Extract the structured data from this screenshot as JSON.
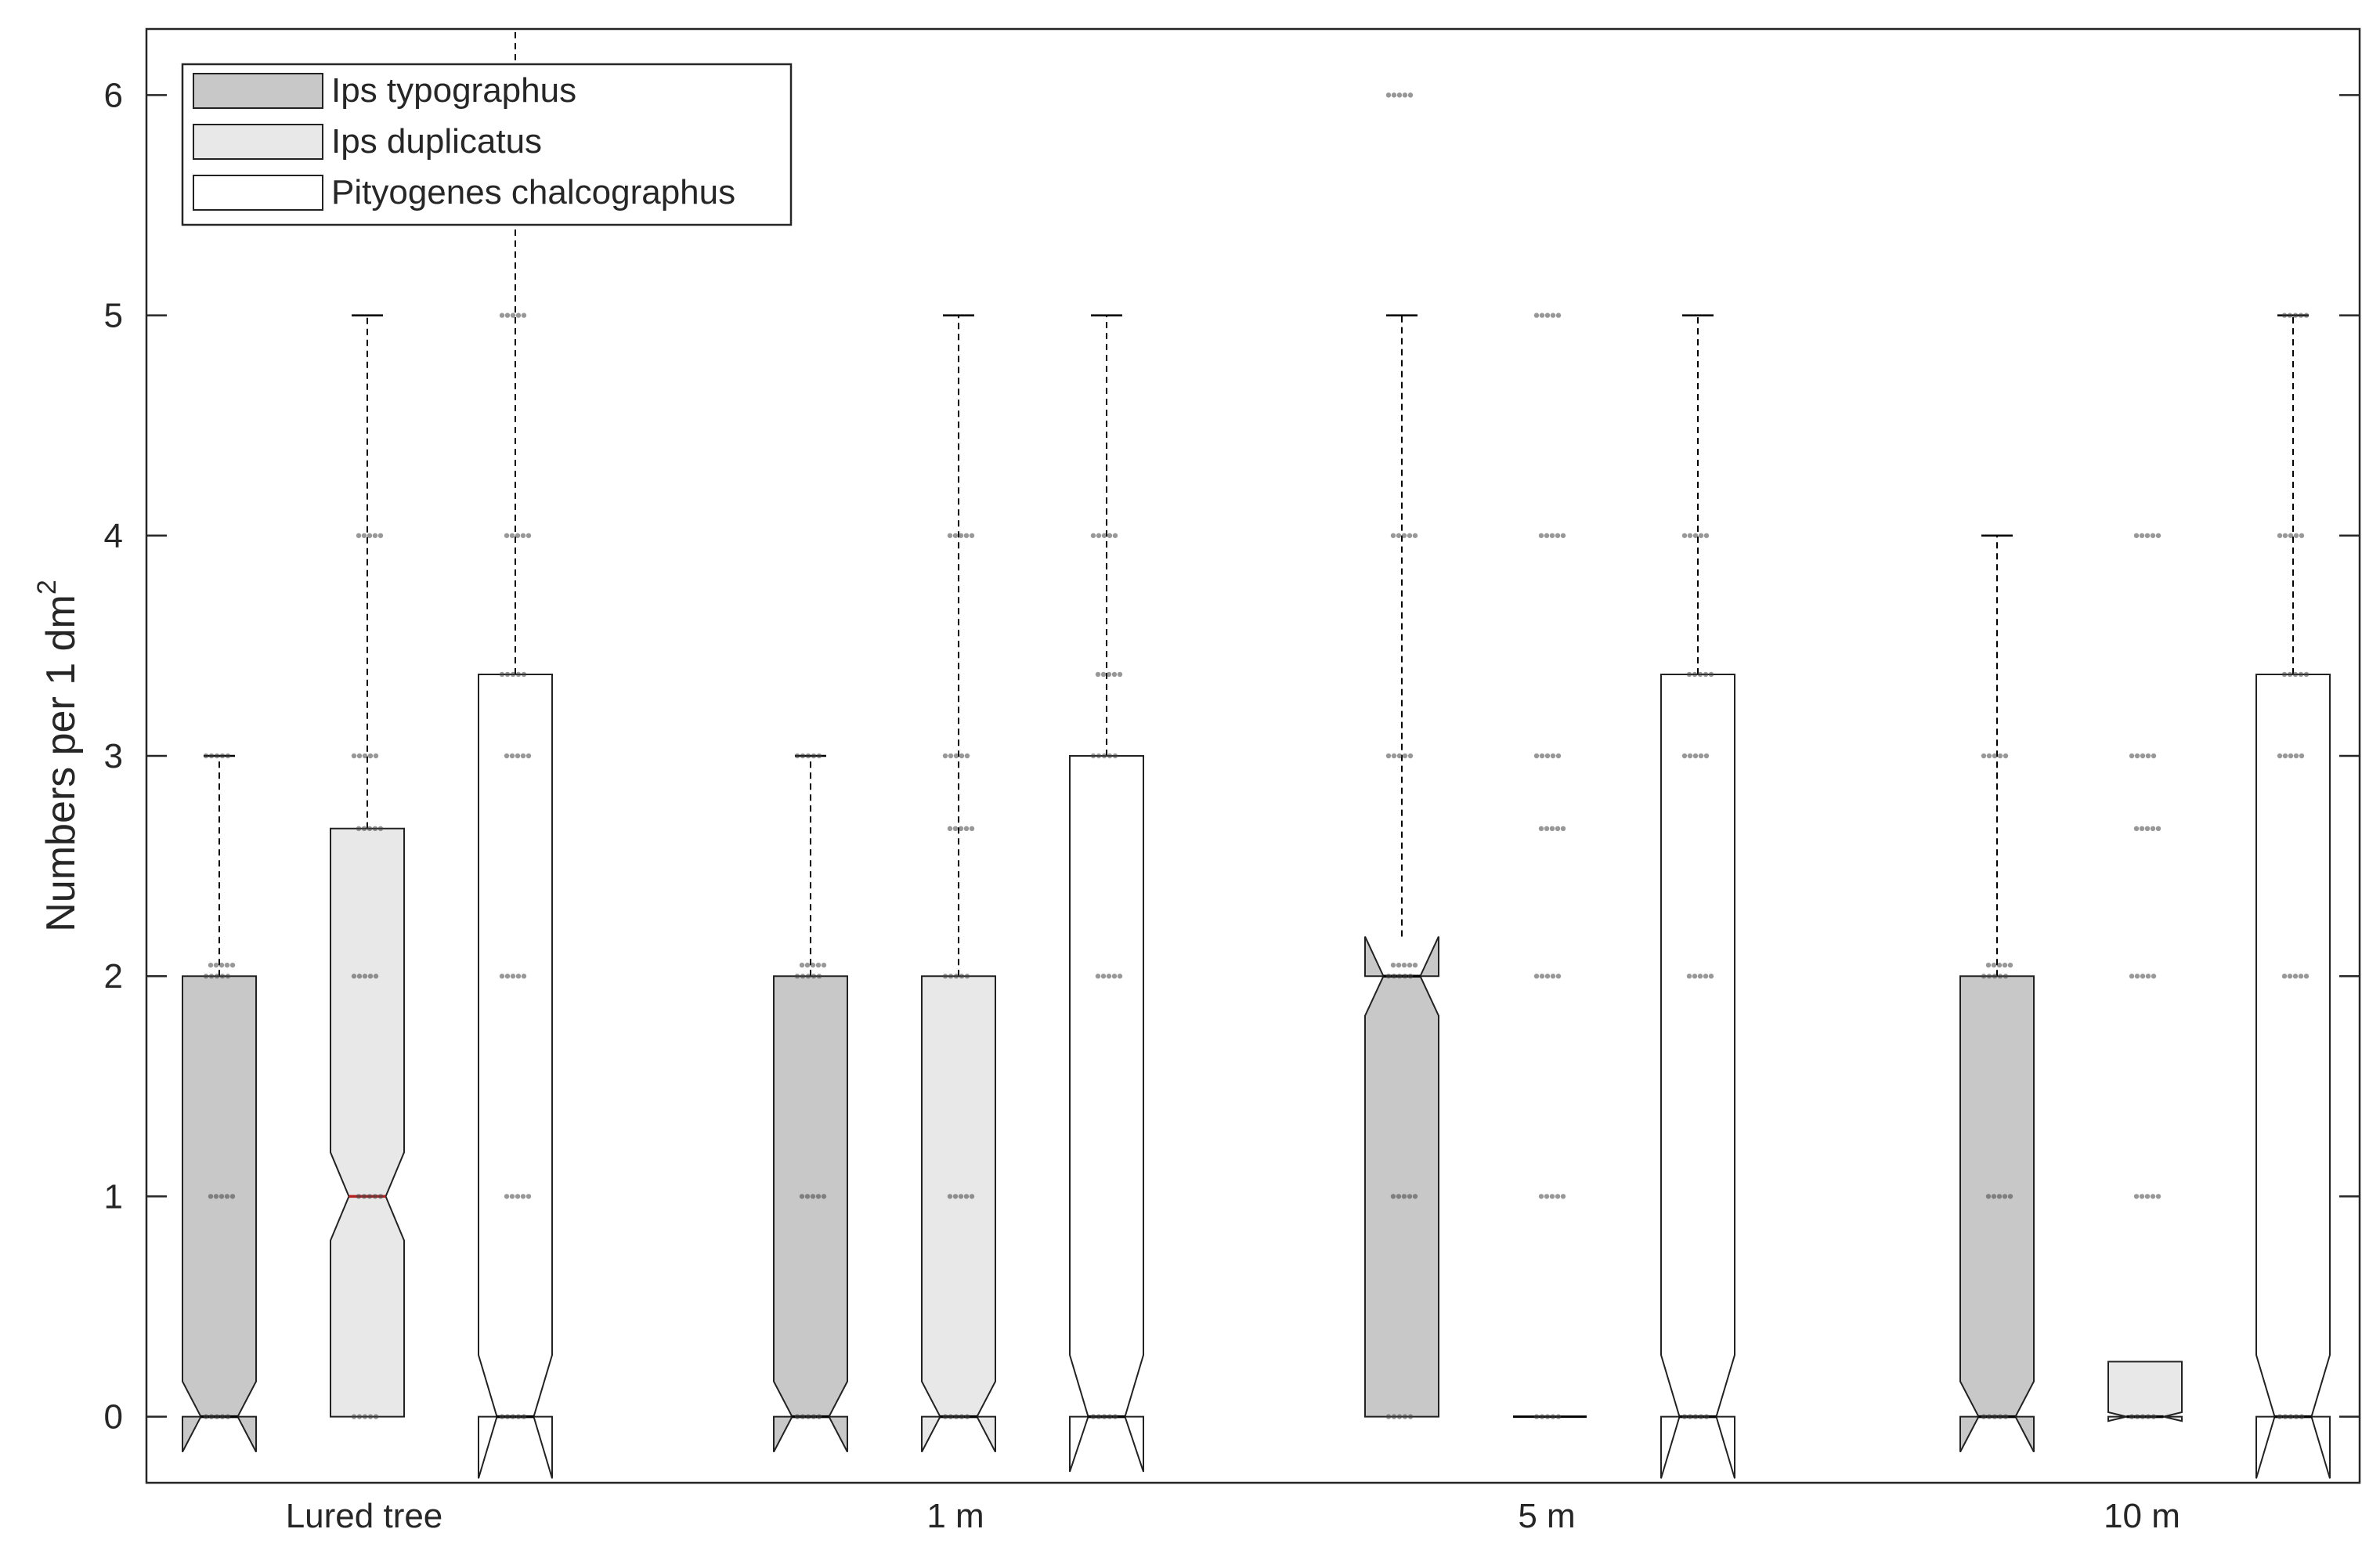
{
  "chart_data": {
    "type": "box",
    "ylabel": "Numbers per 1 dm",
    "ylabel_superscript": "2",
    "ylim": [
      -0.3,
      6.3
    ],
    "yticks": [
      0,
      1,
      2,
      3,
      4,
      5,
      6
    ],
    "groups": [
      "Lured tree",
      "1 m",
      "5 m",
      "10 m"
    ],
    "legend_position": "top-left",
    "series": [
      {
        "name": "Ips typographus",
        "color": "#c8c8c8"
      },
      {
        "name": "Ips duplicatus",
        "color": "#e8e8e8"
      },
      {
        "name": "Pityogenes chalcographus",
        "color": "#ffffff"
      }
    ],
    "boxes": [
      {
        "group": "Lured tree",
        "series": "Ips typographus",
        "q1": 0,
        "median": 0,
        "q3": 2,
        "whisker_low": 0,
        "whisker_high": 3,
        "notch_low": -0.16,
        "notch_high": 0.16,
        "points": [
          0,
          1,
          2,
          2.05,
          3
        ]
      },
      {
        "group": "Lured tree",
        "series": "Ips duplicatus",
        "q1": 0,
        "median": 1,
        "q3": 2.67,
        "whisker_low": 0,
        "whisker_high": 5,
        "notch_low": 0.8,
        "notch_high": 1.2,
        "points": [
          0,
          1,
          2,
          2.67,
          3,
          4
        ]
      },
      {
        "group": "Lured tree",
        "series": "Pityogenes chalcographus",
        "q1": 0,
        "median": 0,
        "q3": 3.37,
        "whisker_low": 0,
        "whisker_high": 6.3,
        "notch_low": -0.28,
        "notch_high": 0.28,
        "points": [
          0,
          1,
          2,
          3,
          3.37,
          4,
          5
        ]
      },
      {
        "group": "1 m",
        "series": "Ips typographus",
        "q1": 0,
        "median": 0,
        "q3": 2,
        "whisker_low": 0,
        "whisker_high": 3,
        "notch_low": -0.16,
        "notch_high": 0.16,
        "points": [
          0,
          1,
          2,
          2.05,
          3
        ]
      },
      {
        "group": "1 m",
        "series": "Ips duplicatus",
        "q1": 0,
        "median": 0,
        "q3": 2,
        "whisker_low": 0,
        "whisker_high": 5,
        "notch_low": -0.16,
        "notch_high": 0.16,
        "points": [
          0,
          1,
          2,
          2.67,
          3,
          4
        ]
      },
      {
        "group": "1 m",
        "series": "Pityogenes chalcographus",
        "q1": 0,
        "median": 0,
        "q3": 3,
        "whisker_low": 0,
        "whisker_high": 5,
        "notch_low": -0.25,
        "notch_high": 0.28,
        "points": [
          0,
          2,
          3,
          3.37,
          4
        ]
      },
      {
        "group": "5 m",
        "series": "Ips typographus",
        "q1": 0,
        "median": 2,
        "q3": 2,
        "whisker_low": 0,
        "whisker_high": 5,
        "notch_low": 1.82,
        "notch_high": 2.18,
        "points": [
          0,
          1,
          2,
          2.05,
          3,
          4,
          6
        ]
      },
      {
        "group": "5 m",
        "series": "Ips duplicatus",
        "q1": 0,
        "median": 0,
        "q3": 0,
        "whisker_low": 0,
        "whisker_high": 0,
        "notch_low": 0,
        "notch_high": 0,
        "points": [
          0,
          1,
          2,
          2.67,
          3,
          4,
          5
        ]
      },
      {
        "group": "5 m",
        "series": "Pityogenes chalcographus",
        "q1": 0,
        "median": 0,
        "q3": 3.37,
        "whisker_low": 0,
        "whisker_high": 5,
        "notch_low": -0.28,
        "notch_high": 0.28,
        "points": [
          0,
          2,
          3,
          3.37,
          4
        ]
      },
      {
        "group": "10 m",
        "series": "Ips typographus",
        "q1": 0,
        "median": 0,
        "q3": 2,
        "whisker_low": 0,
        "whisker_high": 4,
        "notch_low": -0.16,
        "notch_high": 0.16,
        "points": [
          0,
          1,
          2,
          2.05,
          3
        ]
      },
      {
        "group": "10 m",
        "series": "Ips duplicatus",
        "q1": 0,
        "median": 0,
        "q3": 0.25,
        "whisker_low": 0,
        "whisker_high": 0.25,
        "notch_low": -0.02,
        "notch_high": 0.02,
        "points": [
          0,
          1,
          2,
          2.67,
          3,
          4
        ]
      },
      {
        "group": "10 m",
        "series": "Pityogenes chalcographus",
        "q1": 0,
        "median": 0,
        "q3": 3.37,
        "whisker_low": 0,
        "whisker_high": 5,
        "notch_low": -0.28,
        "notch_high": 0.28,
        "points": [
          0,
          2,
          3,
          3.37,
          4,
          5
        ]
      }
    ]
  }
}
